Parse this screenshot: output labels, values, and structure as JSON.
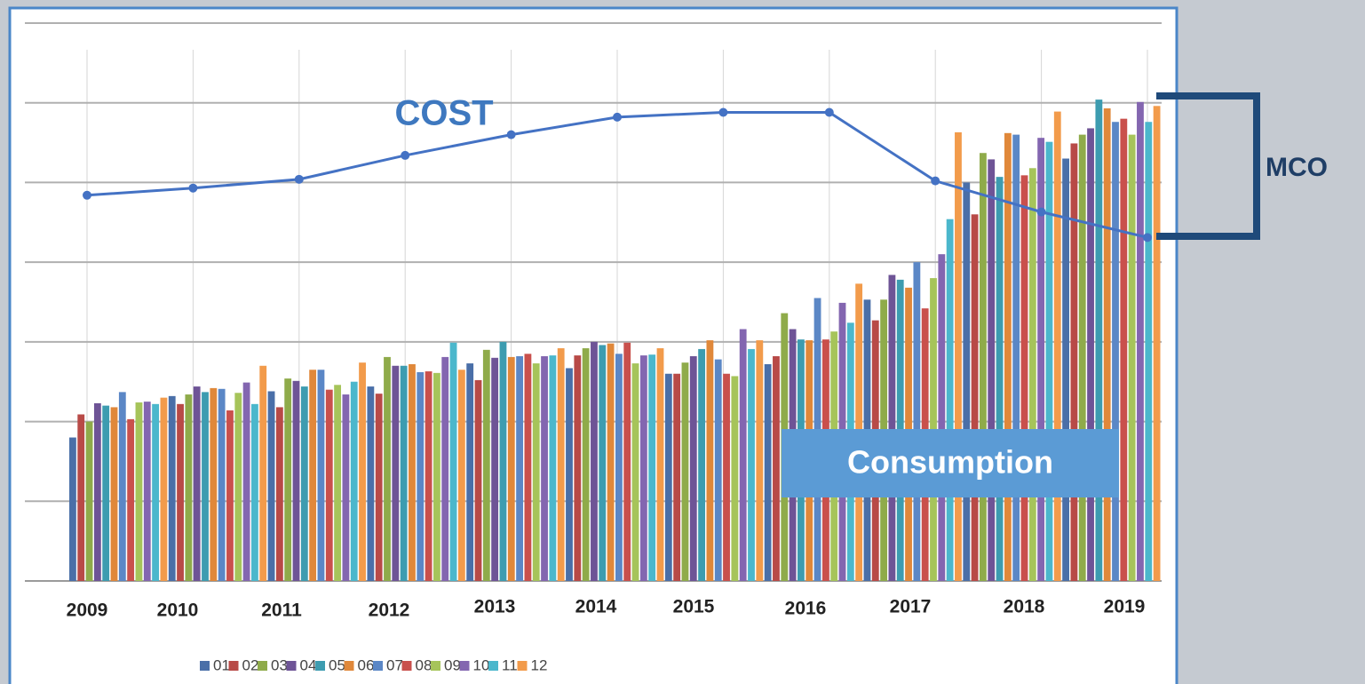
{
  "chart_data": {
    "type": "bar",
    "categories": [
      "2009",
      "2010",
      "2011",
      "2012",
      "2013",
      "2014",
      "2015",
      "2016",
      "2017",
      "2018",
      "2019"
    ],
    "series": [
      {
        "name": "01",
        "color": "#4a6fa8",
        "values": [
          1.8,
          2.32,
          2.38,
          2.44,
          2.73,
          2.67,
          2.6,
          2.72,
          3.53,
          5.0,
          5.3
        ]
      },
      {
        "name": "02",
        "color": "#b84a47",
        "values": [
          2.09,
          2.22,
          2.18,
          2.35,
          2.52,
          2.83,
          2.6,
          2.82,
          3.27,
          4.6,
          5.49
        ]
      },
      {
        "name": "03",
        "color": "#8fab4a",
        "values": [
          2.0,
          2.34,
          2.54,
          2.81,
          2.9,
          2.92,
          2.74,
          3.36,
          3.53,
          5.37,
          5.6
        ]
      },
      {
        "name": "04",
        "color": "#6e5496",
        "values": [
          2.23,
          2.44,
          2.51,
          2.7,
          2.8,
          3.0,
          2.82,
          3.16,
          3.84,
          5.29,
          5.68
        ]
      },
      {
        "name": "05",
        "color": "#3d9cb0",
        "values": [
          2.2,
          2.37,
          2.44,
          2.7,
          3.0,
          2.96,
          2.91,
          3.03,
          3.78,
          5.07,
          6.04
        ]
      },
      {
        "name": "06",
        "color": "#e0883a",
        "values": [
          2.18,
          2.42,
          2.65,
          2.72,
          2.81,
          2.98,
          3.02,
          3.02,
          3.68,
          5.62,
          5.93
        ]
      },
      {
        "name": "07",
        "color": "#5b87c6",
        "values": [
          2.37,
          2.41,
          2.65,
          2.62,
          2.82,
          2.85,
          2.78,
          3.55,
          4.0,
          5.6,
          5.76
        ]
      },
      {
        "name": "08",
        "color": "#c9504c",
        "values": [
          2.03,
          2.14,
          2.4,
          2.63,
          2.85,
          2.99,
          2.6,
          3.03,
          3.42,
          5.09,
          5.8
        ]
      },
      {
        "name": "09",
        "color": "#a6c45a",
        "values": [
          2.24,
          2.36,
          2.46,
          2.61,
          2.73,
          2.73,
          2.57,
          3.13,
          3.8,
          5.18,
          5.6
        ]
      },
      {
        "name": "10",
        "color": "#8366b0",
        "values": [
          2.25,
          2.49,
          2.34,
          2.81,
          2.82,
          2.83,
          3.16,
          3.49,
          4.1,
          5.56,
          6.01
        ]
      },
      {
        "name": "11",
        "color": "#4bb7cc",
        "values": [
          2.22,
          2.22,
          2.5,
          2.99,
          2.83,
          2.84,
          2.91,
          3.24,
          4.54,
          5.51,
          5.76
        ]
      },
      {
        "name": "12",
        "color": "#f29b4b",
        "values": [
          2.3,
          2.7,
          2.74,
          2.65,
          2.92,
          2.92,
          3.02,
          3.73,
          5.63,
          5.89,
          5.96
        ]
      }
    ],
    "cost": {
      "name": "COST",
      "color": "#4472c4",
      "values": [
        4.84,
        4.93,
        5.04,
        5.34,
        5.6,
        5.82,
        5.88,
        5.88,
        5.02,
        4.63,
        4.31
      ]
    },
    "ylim": [
      0,
      7
    ],
    "yticks": [
      0,
      1,
      2,
      3,
      4,
      5,
      6,
      7
    ],
    "grid": true,
    "annotations": [
      "Consumption",
      "MCO"
    ]
  }
}
